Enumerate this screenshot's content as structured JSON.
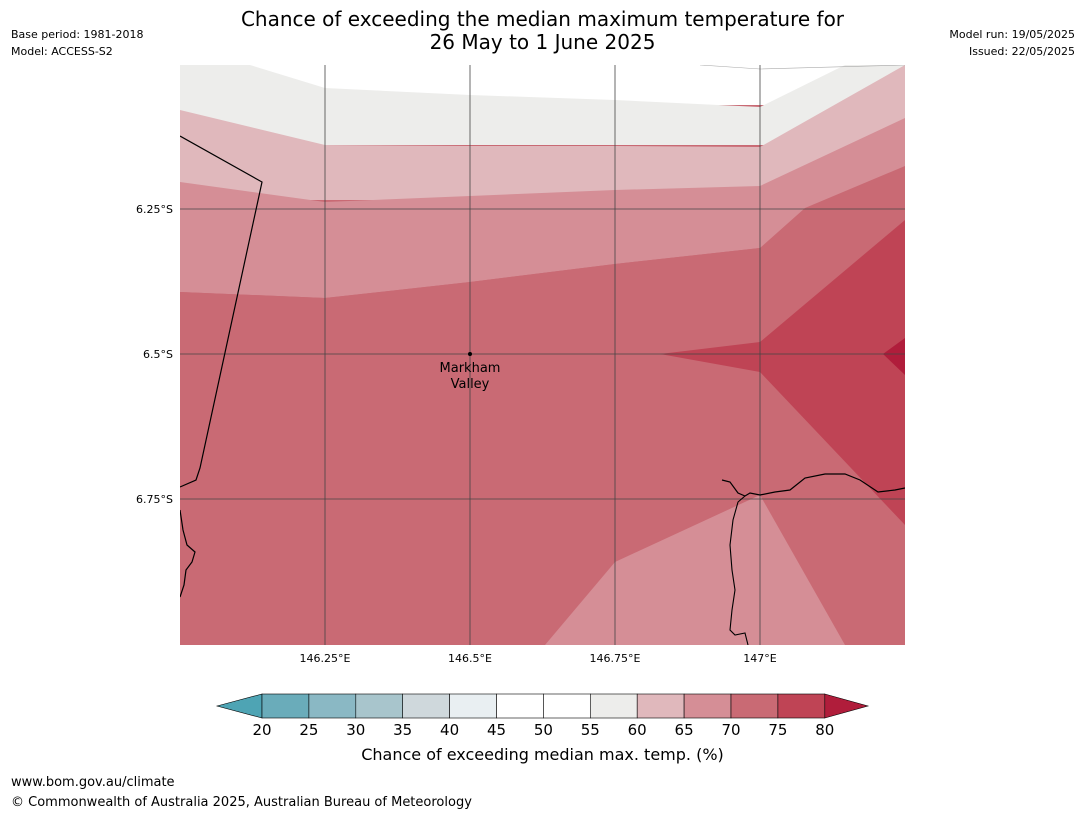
{
  "title": {
    "line1": "Chance of exceeding the median maximum temperature for",
    "line2": "26 May to 1 June 2025"
  },
  "meta_left": {
    "base_period": "Base period: 1981-2018",
    "model": "Model: ACCESS-S2"
  },
  "meta_right": {
    "model_run": "Model run: 19/05/2025",
    "issued": "Issued: 22/05/2025"
  },
  "map": {
    "lat_labels": [
      "6.25°S",
      "6.5°S",
      "6.75°S"
    ],
    "lon_labels": [
      "146.25°E",
      "146.5°E",
      "146.75°E",
      "147°E"
    ],
    "place": {
      "name_line1": "Markham",
      "name_line2": "Valley"
    },
    "band_colors": {
      "55-60": "#ededeb",
      "60-65": "#e0b8bc",
      "65-70": "#d58e96",
      "70-75": "#c96a74",
      "75-80": "#bf4455",
      "80+": "#b01d3b"
    }
  },
  "colorbar": {
    "ticks": [
      "20",
      "25",
      "30",
      "35",
      "40",
      "45",
      "50",
      "55",
      "60",
      "65",
      "70",
      "75",
      "80"
    ],
    "colors": [
      "#4ea4b4",
      "#6aacba",
      "#8ab8c4",
      "#a8c5cc",
      "#cfd8dc",
      "#e9eff2",
      "#ffffff",
      "#ffffff",
      "#ededeb",
      "#e0b8bc",
      "#d58e96",
      "#c96a74",
      "#bf4455",
      "#b01d3b"
    ],
    "label": "Chance of exceeding median max. temp. (%)"
  },
  "footer": {
    "url": "www.bom.gov.au/climate",
    "copyright": "© Commonwealth of Australia 2025, Australian Bureau of Meteorology"
  }
}
